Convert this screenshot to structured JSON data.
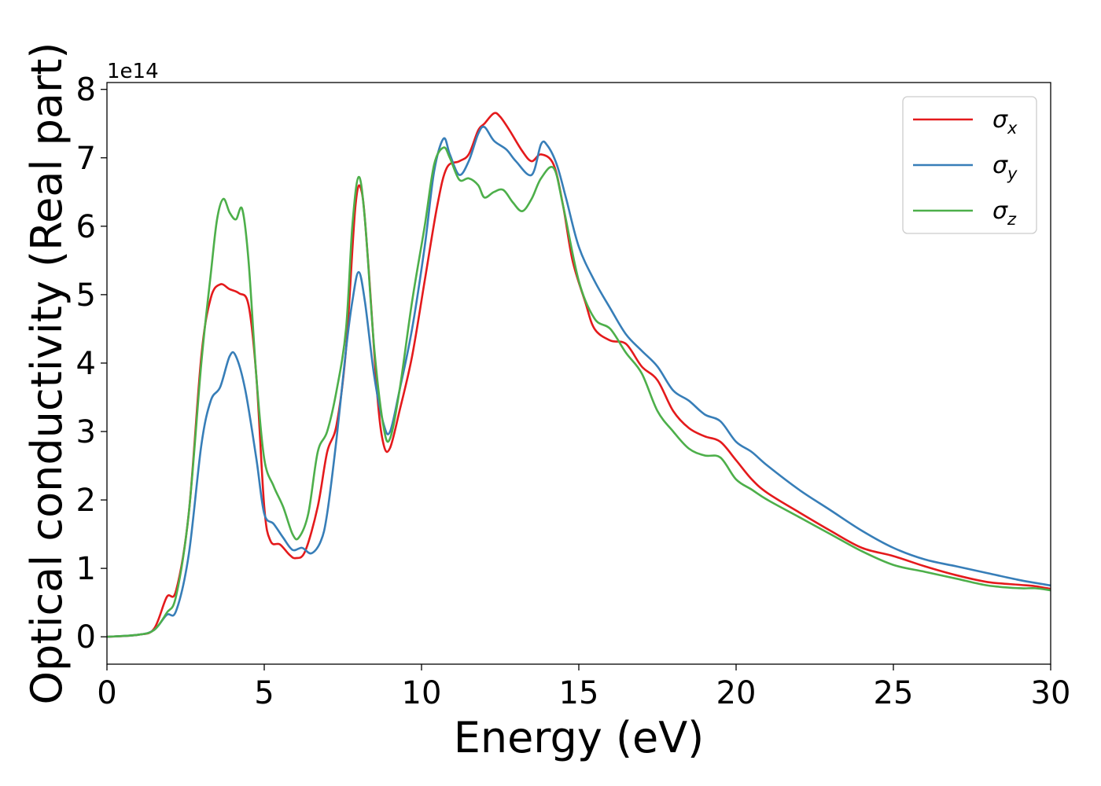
{
  "chart_data": {
    "type": "line",
    "xlabel": "Energy (eV)",
    "ylabel": "Optical conductivity (Real part)",
    "y_offset_text": "1e14",
    "xlim": [
      0,
      30
    ],
    "ylim": [
      -0.4,
      8.1
    ],
    "x_ticks": [
      "0",
      "5",
      "10",
      "15",
      "20",
      "25",
      "30"
    ],
    "x_tick_values": [
      0,
      5,
      10,
      15,
      20,
      25,
      30
    ],
    "y_ticks": [
      "0",
      "1",
      "2",
      "3",
      "4",
      "5",
      "6",
      "7",
      "8"
    ],
    "y_tick_values": [
      0,
      1,
      2,
      3,
      4,
      5,
      6,
      7,
      8
    ],
    "grid": false,
    "legend_position": "top-right",
    "series": [
      {
        "name": "σx",
        "symbol": "σ",
        "subscript": "x",
        "color": "#e41a1c",
        "points": [
          [
            0,
            0
          ],
          [
            1,
            0.03
          ],
          [
            1.5,
            0.12
          ],
          [
            1.9,
            0.58
          ],
          [
            2.2,
            0.68
          ],
          [
            2.6,
            1.8
          ],
          [
            3,
            4.1
          ],
          [
            3.3,
            4.95
          ],
          [
            3.6,
            5.15
          ],
          [
            3.9,
            5.08
          ],
          [
            4.2,
            5.02
          ],
          [
            4.5,
            4.85
          ],
          [
            4.75,
            3.8
          ],
          [
            5,
            1.9
          ],
          [
            5.2,
            1.4
          ],
          [
            5.5,
            1.35
          ],
          [
            5.8,
            1.2
          ],
          [
            6,
            1.15
          ],
          [
            6.3,
            1.25
          ],
          [
            6.7,
            1.9
          ],
          [
            7,
            2.7
          ],
          [
            7.3,
            3.1
          ],
          [
            7.6,
            4.2
          ],
          [
            7.9,
            6.3
          ],
          [
            8.1,
            6.5
          ],
          [
            8.3,
            5.5
          ],
          [
            8.6,
            3.5
          ],
          [
            8.8,
            2.8
          ],
          [
            9,
            2.76
          ],
          [
            9.3,
            3.3
          ],
          [
            9.7,
            4.1
          ],
          [
            10.1,
            5.2
          ],
          [
            10.5,
            6.3
          ],
          [
            10.8,
            6.85
          ],
          [
            11.2,
            6.95
          ],
          [
            11.5,
            7.05
          ],
          [
            11.8,
            7.4
          ],
          [
            12,
            7.5
          ],
          [
            12.3,
            7.65
          ],
          [
            12.5,
            7.6
          ],
          [
            12.8,
            7.4
          ],
          [
            13.2,
            7.1
          ],
          [
            13.5,
            6.95
          ],
          [
            13.8,
            7.05
          ],
          [
            14.2,
            6.9
          ],
          [
            14.5,
            6.3
          ],
          [
            14.8,
            5.5
          ],
          [
            15.2,
            4.9
          ],
          [
            15.5,
            4.5
          ],
          [
            16,
            4.33
          ],
          [
            16.5,
            4.28
          ],
          [
            17,
            3.95
          ],
          [
            17.5,
            3.75
          ],
          [
            18,
            3.3
          ],
          [
            18.5,
            3.05
          ],
          [
            19,
            2.93
          ],
          [
            19.5,
            2.85
          ],
          [
            20,
            2.58
          ],
          [
            20.5,
            2.3
          ],
          [
            21,
            2.1
          ],
          [
            22,
            1.82
          ],
          [
            23,
            1.55
          ],
          [
            24,
            1.3
          ],
          [
            25,
            1.18
          ],
          [
            26,
            1.03
          ],
          [
            27,
            0.9
          ],
          [
            28,
            0.8
          ],
          [
            29,
            0.76
          ],
          [
            29.5,
            0.74
          ],
          [
            30,
            0.7
          ]
        ]
      },
      {
        "name": "σy",
        "symbol": "σ",
        "subscript": "y",
        "color": "#377eb8",
        "points": [
          [
            0,
            0
          ],
          [
            1,
            0.03
          ],
          [
            1.5,
            0.1
          ],
          [
            1.9,
            0.32
          ],
          [
            2.2,
            0.38
          ],
          [
            2.6,
            1.2
          ],
          [
            3,
            2.8
          ],
          [
            3.3,
            3.45
          ],
          [
            3.6,
            3.65
          ],
          [
            3.9,
            4.1
          ],
          [
            4.1,
            4.1
          ],
          [
            4.4,
            3.6
          ],
          [
            4.75,
            2.6
          ],
          [
            5,
            1.8
          ],
          [
            5.3,
            1.65
          ],
          [
            5.6,
            1.45
          ],
          [
            5.9,
            1.27
          ],
          [
            6.2,
            1.3
          ],
          [
            6.5,
            1.22
          ],
          [
            6.8,
            1.4
          ],
          [
            7,
            1.8
          ],
          [
            7.3,
            2.9
          ],
          [
            7.6,
            4.2
          ],
          [
            7.8,
            4.9
          ],
          [
            8,
            5.33
          ],
          [
            8.2,
            4.9
          ],
          [
            8.5,
            3.8
          ],
          [
            8.8,
            3.1
          ],
          [
            9,
            3.0
          ],
          [
            9.3,
            3.6
          ],
          [
            9.7,
            4.5
          ],
          [
            10.1,
            5.7
          ],
          [
            10.4,
            6.8
          ],
          [
            10.7,
            7.28
          ],
          [
            10.9,
            7.05
          ],
          [
            11.2,
            6.75
          ],
          [
            11.5,
            6.95
          ],
          [
            11.8,
            7.35
          ],
          [
            12,
            7.45
          ],
          [
            12.3,
            7.25
          ],
          [
            12.7,
            7.12
          ],
          [
            13,
            6.95
          ],
          [
            13.5,
            6.75
          ],
          [
            13.8,
            7.2
          ],
          [
            14,
            7.18
          ],
          [
            14.3,
            6.9
          ],
          [
            14.6,
            6.4
          ],
          [
            15,
            5.7
          ],
          [
            15.5,
            5.2
          ],
          [
            16,
            4.8
          ],
          [
            16.5,
            4.42
          ],
          [
            17,
            4.18
          ],
          [
            17.5,
            3.95
          ],
          [
            18,
            3.6
          ],
          [
            18.5,
            3.45
          ],
          [
            19,
            3.25
          ],
          [
            19.5,
            3.15
          ],
          [
            20,
            2.85
          ],
          [
            20.5,
            2.7
          ],
          [
            21,
            2.5
          ],
          [
            22,
            2.15
          ],
          [
            23,
            1.85
          ],
          [
            24,
            1.55
          ],
          [
            25,
            1.3
          ],
          [
            26,
            1.13
          ],
          [
            27,
            1.03
          ],
          [
            28,
            0.93
          ],
          [
            29,
            0.83
          ],
          [
            30,
            0.75
          ]
        ]
      },
      {
        "name": "σz",
        "symbol": "σ",
        "subscript": "z",
        "color": "#4daf4a",
        "points": [
          [
            0,
            0
          ],
          [
            1,
            0.03
          ],
          [
            1.5,
            0.1
          ],
          [
            1.9,
            0.35
          ],
          [
            2.2,
            0.6
          ],
          [
            2.6,
            1.8
          ],
          [
            3,
            4.0
          ],
          [
            3.3,
            5.3
          ],
          [
            3.5,
            6.1
          ],
          [
            3.7,
            6.4
          ],
          [
            3.9,
            6.2
          ],
          [
            4.1,
            6.1
          ],
          [
            4.3,
            6.25
          ],
          [
            4.5,
            5.5
          ],
          [
            4.75,
            3.8
          ],
          [
            5,
            2.6
          ],
          [
            5.3,
            2.2
          ],
          [
            5.6,
            1.9
          ],
          [
            5.9,
            1.5
          ],
          [
            6.1,
            1.45
          ],
          [
            6.4,
            1.8
          ],
          [
            6.7,
            2.7
          ],
          [
            7,
            3.0
          ],
          [
            7.3,
            3.6
          ],
          [
            7.6,
            4.5
          ],
          [
            7.8,
            6.0
          ],
          [
            8,
            6.72
          ],
          [
            8.2,
            6.1
          ],
          [
            8.5,
            4.2
          ],
          [
            8.8,
            3.05
          ],
          [
            9,
            2.9
          ],
          [
            9.3,
            3.6
          ],
          [
            9.7,
            4.9
          ],
          [
            10.1,
            6.0
          ],
          [
            10.4,
            6.9
          ],
          [
            10.7,
            7.15
          ],
          [
            10.9,
            7.0
          ],
          [
            11.2,
            6.68
          ],
          [
            11.5,
            6.7
          ],
          [
            11.8,
            6.6
          ],
          [
            12,
            6.42
          ],
          [
            12.3,
            6.5
          ],
          [
            12.6,
            6.53
          ],
          [
            12.9,
            6.35
          ],
          [
            13.2,
            6.22
          ],
          [
            13.5,
            6.4
          ],
          [
            13.8,
            6.7
          ],
          [
            14.2,
            6.85
          ],
          [
            14.5,
            6.3
          ],
          [
            15,
            5.2
          ],
          [
            15.5,
            4.65
          ],
          [
            16,
            4.5
          ],
          [
            16.5,
            4.15
          ],
          [
            17,
            3.85
          ],
          [
            17.5,
            3.3
          ],
          [
            18,
            3.0
          ],
          [
            18.5,
            2.75
          ],
          [
            19,
            2.65
          ],
          [
            19.5,
            2.62
          ],
          [
            20,
            2.3
          ],
          [
            20.5,
            2.15
          ],
          [
            21,
            2.0
          ],
          [
            22,
            1.75
          ],
          [
            23,
            1.5
          ],
          [
            24,
            1.25
          ],
          [
            25,
            1.05
          ],
          [
            26,
            0.95
          ],
          [
            27,
            0.85
          ],
          [
            28,
            0.75
          ],
          [
            29,
            0.71
          ],
          [
            29.5,
            0.71
          ],
          [
            30,
            0.68
          ]
        ]
      }
    ]
  }
}
